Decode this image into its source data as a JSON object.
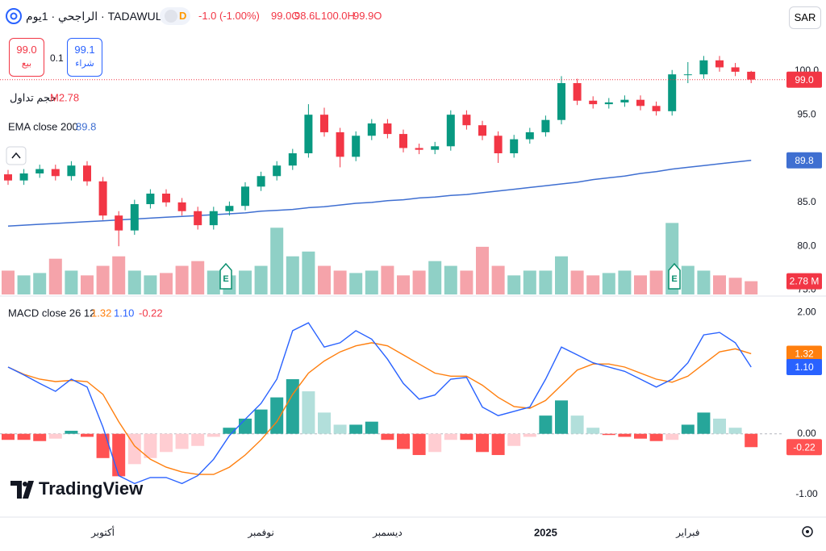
{
  "header": {
    "symbol": "الراجحي · 1يوم · TADAWUL",
    "interval_badge": "D",
    "change": "-1.0 (-1.00%)",
    "ohlc": [
      "99.0C",
      "98.6L",
      "100.0H",
      "99.9O"
    ],
    "currency": "SAR",
    "sell": {
      "price": "99.0",
      "label": "بيع"
    },
    "spread": "0.1",
    "buy": {
      "price": "99.1",
      "label": "شراء"
    }
  },
  "watermark": "TradingView",
  "chart_data": [
    {
      "type": "candlestick",
      "categories": [
        null,
        null,
        null,
        null,
        null,
        null,
        "أكتوبر",
        null,
        null,
        null,
        null,
        null,
        null,
        null,
        null,
        null,
        "نوفمبر",
        null,
        null,
        null,
        null,
        null,
        null,
        null,
        "ديسمبر",
        null,
        null,
        null,
        null,
        null,
        null,
        null,
        null,
        null,
        "2025",
        null,
        null,
        null,
        null,
        null,
        null,
        null,
        null,
        "فبراير",
        null,
        null,
        null,
        null
      ],
      "open": [
        88.2,
        87.5,
        88.3,
        88.8,
        88.0,
        89.2,
        87.4,
        83.5,
        81.8,
        84.8,
        86.0,
        85.0,
        84.0,
        82.4,
        84.0,
        84.6,
        86.8,
        88.0,
        89.2,
        90.6,
        95.0,
        93.0,
        90.2,
        92.6,
        94.0,
        92.8,
        91.2,
        91.0,
        91.4,
        95.0,
        93.8,
        92.6,
        90.6,
        92.2,
        93.0,
        94.4,
        98.6,
        96.6,
        96.2,
        96.4,
        96.7,
        96.0,
        95.4,
        99.6,
        99.6,
        101.2,
        100.4,
        99.9
      ],
      "high": [
        88.7,
        88.8,
        89.3,
        89.3,
        89.7,
        89.7,
        87.9,
        84.0,
        85.3,
        86.5,
        86.5,
        85.5,
        84.5,
        84.5,
        85.1,
        87.3,
        88.5,
        89.7,
        91.1,
        96.2,
        95.8,
        93.5,
        93.1,
        94.5,
        94.5,
        93.3,
        91.7,
        91.9,
        95.5,
        95.5,
        94.3,
        93.1,
        92.7,
        93.5,
        94.9,
        99.4,
        99.1,
        97.1,
        96.9,
        97.2,
        97.2,
        96.5,
        100.1,
        101.0,
        101.7,
        101.7,
        100.9,
        100.0
      ],
      "low": [
        87.0,
        87.0,
        87.8,
        87.5,
        87.5,
        86.9,
        83.0,
        80.0,
        81.3,
        84.3,
        84.5,
        83.5,
        81.9,
        81.9,
        83.5,
        84.1,
        86.3,
        87.5,
        88.7,
        90.1,
        92.5,
        89.0,
        89.7,
        92.1,
        92.3,
        90.7,
        90.5,
        90.5,
        90.9,
        93.3,
        92.1,
        89.5,
        90.1,
        91.7,
        92.5,
        93.9,
        96.1,
        95.7,
        95.7,
        95.9,
        95.5,
        94.9,
        94.9,
        98.6,
        99.1,
        99.9,
        99.4,
        98.6
      ],
      "close": [
        87.5,
        88.3,
        88.8,
        88.0,
        89.2,
        87.4,
        83.5,
        81.8,
        84.8,
        86.0,
        85.0,
        84.0,
        82.4,
        84.0,
        84.6,
        86.8,
        88.0,
        89.2,
        90.6,
        95.0,
        93.0,
        90.2,
        92.6,
        94.0,
        92.8,
        91.2,
        91.0,
        91.4,
        95.0,
        93.8,
        92.6,
        90.6,
        92.2,
        93.0,
        94.4,
        98.6,
        96.6,
        96.2,
        96.4,
        96.7,
        96.0,
        95.4,
        99.6,
        99.6,
        101.2,
        100.4,
        99.9,
        99.0
      ],
      "up_color": "#089981",
      "down_color": "#f23645",
      "last_label": "99.0",
      "ylim": [
        74.5,
        104.4
      ],
      "yticks": [
        {
          "value": 75,
          "label": "75.0"
        },
        {
          "value": 80,
          "label": "80.0"
        },
        {
          "value": 85,
          "label": "85.0"
        },
        {
          "value": 90,
          "label": "90.0"
        },
        {
          "value": 95,
          "label": "95.0"
        },
        {
          "value": 100,
          "label": "100.0"
        }
      ],
      "grid": false,
      "ema": {
        "name": "EMA close 200",
        "color": "#3f6fd1",
        "last_label": "89.8",
        "values": [
          82.3,
          82.4,
          82.5,
          82.6,
          82.7,
          82.8,
          82.9,
          83.0,
          83.1,
          83.2,
          83.3,
          83.4,
          83.5,
          83.6,
          83.7,
          83.8,
          84.0,
          84.1,
          84.2,
          84.4,
          84.5,
          84.7,
          84.9,
          85.0,
          85.2,
          85.3,
          85.5,
          85.6,
          85.8,
          85.9,
          86.1,
          86.3,
          86.5,
          86.7,
          86.9,
          87.1,
          87.3,
          87.6,
          87.8,
          88.0,
          88.3,
          88.5,
          88.8,
          89.0,
          89.2,
          89.4,
          89.6,
          89.8
        ]
      },
      "volume": {
        "name": "حجم تداول",
        "legend_label": "M2.78",
        "last_label": "2.78 M",
        "up_color": "#8fd0c6",
        "down_color": "#f5a3aa",
        "ylim": [
          0,
          55
        ],
        "values": [
          5,
          4,
          4.5,
          7.5,
          5,
          4,
          6,
          8,
          5,
          4,
          4.5,
          6,
          7,
          5,
          4,
          5,
          6,
          14,
          8,
          9,
          6,
          5,
          4.5,
          5,
          6,
          4,
          5,
          7,
          6,
          5,
          10,
          6,
          4,
          5,
          5,
          8,
          5,
          4,
          4.5,
          5,
          4,
          5,
          15,
          6,
          5,
          4,
          3.5,
          2.78
        ]
      }
    },
    {
      "type": "macd",
      "title": "MACD close 26 12",
      "ylim": [
        -1.36,
        2.23
      ],
      "yticks": [
        {
          "value": 2,
          "label": "2.00"
        },
        {
          "value": 0,
          "label": "0.00"
        },
        {
          "value": -1,
          "label": "-1.00"
        }
      ],
      "series": [
        {
          "color": "#ff7f0e",
          "last_label": "1.32",
          "values": [
            1.1,
            0.98,
            0.9,
            0.86,
            0.88,
            0.86,
            0.65,
            0.2,
            -0.2,
            -0.42,
            -0.55,
            -0.63,
            -0.67,
            -0.67,
            -0.55,
            -0.35,
            -0.1,
            0.2,
            0.65,
            1.0,
            1.2,
            1.35,
            1.45,
            1.5,
            1.45,
            1.3,
            1.15,
            1.0,
            0.95,
            0.95,
            0.8,
            0.6,
            0.45,
            0.42,
            0.55,
            0.8,
            1.05,
            1.15,
            1.15,
            1.1,
            1.0,
            0.9,
            0.85,
            0.95,
            1.15,
            1.35,
            1.4,
            1.32
          ]
        },
        {
          "color": "#2962ff",
          "last_label": "1.10",
          "values": [
            1.1,
            0.97,
            0.83,
            0.7,
            0.9,
            0.77,
            0.11,
            -0.69,
            -0.82,
            -0.72,
            -0.72,
            -0.82,
            -0.69,
            -0.42,
            -0.03,
            0.24,
            0.5,
            0.9,
            1.7,
            1.83,
            1.43,
            1.5,
            1.7,
            1.56,
            1.23,
            0.83,
            0.57,
            0.64,
            0.9,
            0.93,
            0.44,
            0.3,
            0.37,
            0.44,
            0.9,
            1.43,
            1.3,
            1.17,
            1.1,
            1.03,
            0.9,
            0.77,
            0.9,
            1.17,
            1.63,
            1.67,
            1.5,
            1.1
          ]
        }
      ],
      "histogram": {
        "last_label": "-0.22",
        "colors": {
          "up_strong": "#26a69a",
          "up_weak": "#b2dfdb",
          "down_strong": "#ff5252",
          "down_weak": "#ffcdd2"
        },
        "values": [
          -0.1,
          -0.1,
          -0.12,
          -0.08,
          0.05,
          -0.05,
          -0.4,
          -0.7,
          -0.5,
          -0.4,
          -0.3,
          -0.25,
          -0.2,
          -0.05,
          0.1,
          0.25,
          0.4,
          0.6,
          0.9,
          0.7,
          0.35,
          0.15,
          0.15,
          0.2,
          -0.1,
          -0.25,
          -0.35,
          -0.3,
          -0.1,
          -0.1,
          -0.3,
          -0.35,
          -0.2,
          -0.05,
          0.3,
          0.55,
          0.3,
          0.1,
          -0.02,
          -0.05,
          -0.08,
          -0.12,
          -0.1,
          0.15,
          0.35,
          0.25,
          0.1,
          -0.22
        ]
      }
    }
  ]
}
